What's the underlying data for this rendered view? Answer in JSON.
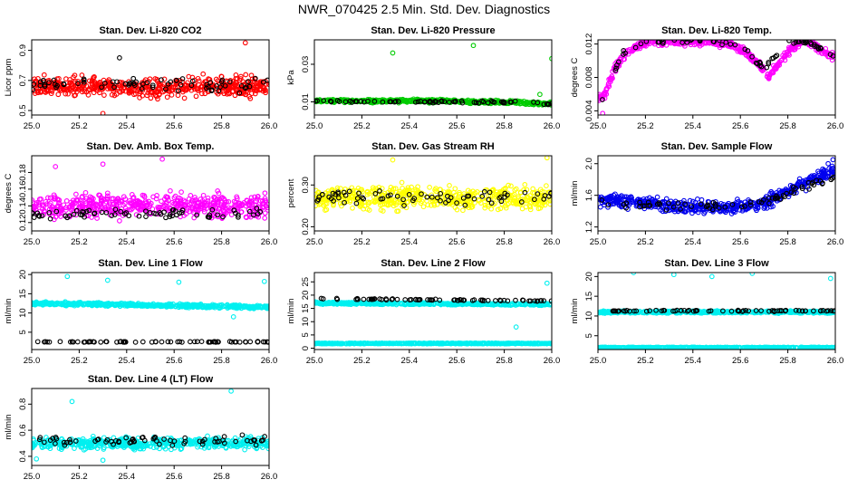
{
  "title": "NWR_070425  2.5 Min. Std. Dev. Diagnostics",
  "chart_data": [
    {
      "type": "scatter",
      "title": "Stan. Dev. Li-820 CO2",
      "ylabel": "Licor ppm",
      "xlim": [
        25.0,
        26.0
      ],
      "xticks": [
        "25.0",
        "25.2",
        "25.4",
        "25.6",
        "25.8",
        "26.0"
      ],
      "xtick_values": [
        25.0,
        25.2,
        25.4,
        25.6,
        25.8,
        26.0
      ],
      "ylim": [
        0.47,
        0.97
      ],
      "yticks": [
        "0.5",
        "0.7",
        "0.9"
      ],
      "ytick_values": [
        0.5,
        0.7,
        0.9
      ],
      "series": [
        {
          "name": "main",
          "color": "#ff0000",
          "baseline": 0.66,
          "spread": 0.09,
          "x": [
            25.05,
            25.2,
            25.35,
            25.5,
            25.65,
            25.8,
            25.95
          ],
          "y": [
            0.66,
            0.65,
            0.66,
            0.65,
            0.66,
            0.66,
            0.66
          ],
          "outliers_x": [
            25.3,
            25.9
          ],
          "outliers_y": [
            0.48,
            0.95
          ]
        },
        {
          "name": "flagged",
          "color": "#000000",
          "baseline": 0.67,
          "spread": 0.07,
          "x": [
            25.0,
            25.5,
            26.0
          ],
          "y": [
            0.67,
            0.67,
            0.67
          ],
          "outliers_x": [
            25.37
          ],
          "outliers_y": [
            0.85
          ]
        }
      ]
    },
    {
      "type": "scatter",
      "title": "Stan. Dev. Li-820 Pressure",
      "ylabel": "kPa",
      "xlim": [
        25.0,
        26.0
      ],
      "xticks": [
        "25.0",
        "25.2",
        "25.4",
        "25.6",
        "25.8",
        "26.0"
      ],
      "xtick_values": [
        25.0,
        25.2,
        25.4,
        25.6,
        25.8,
        26.0
      ],
      "ylim": [
        0.003,
        0.043
      ],
      "yticks": [
        "0.01",
        "0.03"
      ],
      "ytick_values": [
        0.01,
        0.03
      ],
      "series": [
        {
          "name": "main",
          "color": "#00cc00",
          "baseline": 0.0105,
          "spread": 0.0012,
          "x": [
            25.0,
            25.5,
            25.9,
            26.0
          ],
          "y": [
            0.0105,
            0.0105,
            0.0095,
            0.009
          ],
          "outliers_x": [
            25.33,
            25.67,
            26.0,
            25.95
          ],
          "outliers_y": [
            0.036,
            0.04,
            0.033,
            0.014
          ]
        },
        {
          "name": "flagged",
          "color": "#000000",
          "baseline": 0.0103,
          "spread": 0.0008,
          "x": [
            25.0,
            25.9,
            26.0
          ],
          "y": [
            0.0103,
            0.0098,
            0.0088
          ],
          "outliers_x": [],
          "outliers_y": []
        }
      ]
    },
    {
      "type": "scatter",
      "title": "Stan. Dev. Li-820 Temp.",
      "ylabel": "degrees C",
      "xlim": [
        25.0,
        26.0
      ],
      "xticks": [
        "25.0",
        "25.2",
        "25.4",
        "25.6",
        "25.8",
        "26.0"
      ],
      "xtick_values": [
        25.0,
        25.2,
        25.4,
        25.6,
        25.8,
        26.0
      ],
      "ylim": [
        0.0035,
        0.0125
      ],
      "yticks": [
        "0.004",
        "0.008",
        "0.012"
      ],
      "ytick_values": [
        0.004,
        0.008,
        0.012
      ],
      "series": [
        {
          "name": "main",
          "color": "#ff00ff",
          "baseline": 0.0115,
          "spread": 0.0007,
          "x": [
            25.0,
            25.03,
            25.07,
            25.12,
            25.2,
            25.3,
            25.45,
            25.55,
            25.62,
            25.68,
            25.72,
            25.78,
            25.85,
            25.9,
            25.95,
            26.0
          ],
          "y": [
            0.0055,
            0.006,
            0.009,
            0.011,
            0.0123,
            0.0123,
            0.0122,
            0.0121,
            0.011,
            0.0095,
            0.008,
            0.0105,
            0.0123,
            0.0122,
            0.011,
            0.0105
          ],
          "outliers_x": [
            25.02
          ],
          "outliers_y": [
            0.0037
          ]
        },
        {
          "name": "flagged",
          "color": "#000000",
          "baseline": 0.012,
          "spread": 0.0005,
          "x": [
            25.0,
            25.05,
            25.1,
            25.2,
            25.5,
            25.6,
            25.7,
            25.8,
            25.9,
            26.0
          ],
          "y": [
            0.0045,
            0.007,
            0.011,
            0.0123,
            0.0123,
            0.012,
            0.009,
            0.0123,
            0.0122,
            0.0105
          ],
          "outliers_x": [],
          "outliers_y": []
        }
      ]
    },
    {
      "type": "scatter",
      "title": "Stan. Dev. Amb. Box Temp.",
      "ylabel": "degrees C",
      "xlim": [
        25.0,
        26.0
      ],
      "xticks": [
        "25.0",
        "25.2",
        "25.4",
        "25.6",
        "25.8",
        "26.0"
      ],
      "xtick_values": [
        25.0,
        25.2,
        25.4,
        25.6,
        25.8,
        26.0
      ],
      "ylim": [
        0.11,
        0.2
      ],
      "yticks": [
        "0.12",
        "0.14",
        "0.16",
        "0.18"
      ],
      "ytick_values": [
        0.12,
        0.14,
        0.16,
        0.18
      ],
      "series": [
        {
          "name": "main",
          "color": "#ff00ff",
          "baseline": 0.14,
          "spread": 0.02,
          "x": [
            25.0,
            26.0
          ],
          "y": [
            0.14,
            0.14
          ],
          "outliers_x": [
            25.55,
            25.3,
            25.1
          ],
          "outliers_y": [
            0.196,
            0.19,
            0.187
          ]
        },
        {
          "name": "flagged",
          "color": "#000000",
          "baseline": 0.13,
          "spread": 0.008,
          "x": [
            25.0,
            26.0
          ],
          "y": [
            0.13,
            0.13
          ],
          "outliers_x": [],
          "outliers_y": []
        }
      ]
    },
    {
      "type": "scatter",
      "title": "Stan. Dev. Gas Stream RH",
      "ylabel": "percent",
      "xlim": [
        25.0,
        26.0
      ],
      "xticks": [
        "25.0",
        "25.2",
        "25.4",
        "25.6",
        "25.8",
        "26.0"
      ],
      "xtick_values": [
        25.0,
        25.2,
        25.4,
        25.6,
        25.8,
        26.0
      ],
      "ylim": [
        0.19,
        0.37
      ],
      "yticks": [
        "0.20",
        "0.30"
      ],
      "ytick_values": [
        0.2,
        0.3
      ],
      "series": [
        {
          "name": "main",
          "color": "#ffff00",
          "baseline": 0.27,
          "spread": 0.04,
          "x": [
            25.0,
            26.0
          ],
          "y": [
            0.27,
            0.27
          ],
          "outliers_x": [
            25.98,
            25.33
          ],
          "outliers_y": [
            0.365,
            0.36
          ]
        },
        {
          "name": "flagged",
          "color": "#000000",
          "baseline": 0.27,
          "spread": 0.025,
          "x": [
            25.0,
            26.0
          ],
          "y": [
            0.27,
            0.27
          ],
          "outliers_x": [],
          "outliers_y": []
        }
      ]
    },
    {
      "type": "scatter",
      "title": "Stan. Dev. Sample Flow",
      "ylabel": "ml/min",
      "xlim": [
        25.0,
        26.0
      ],
      "xticks": [
        "25.0",
        "25.2",
        "25.4",
        "25.6",
        "25.8",
        "26.0"
      ],
      "xtick_values": [
        25.0,
        25.2,
        25.4,
        25.6,
        25.8,
        26.0
      ],
      "ylim": [
        1.15,
        2.1
      ],
      "yticks": [
        "1.2",
        "1.6",
        "2.0"
      ],
      "ytick_values": [
        1.2,
        1.6,
        2.0
      ],
      "series": [
        {
          "name": "main",
          "color": "#0000ee",
          "baseline": 1.5,
          "spread": 0.12,
          "x": [
            25.0,
            25.2,
            25.4,
            25.6,
            25.7,
            25.8,
            25.9,
            26.0
          ],
          "y": [
            1.55,
            1.5,
            1.45,
            1.45,
            1.5,
            1.65,
            1.8,
            1.9
          ],
          "outliers_x": [
            25.99,
            25.97
          ],
          "outliers_y": [
            2.05,
            2.0
          ]
        },
        {
          "name": "flagged",
          "color": "#000000",
          "baseline": 1.5,
          "spread": 0.08,
          "x": [
            25.0,
            25.4,
            25.7,
            25.9,
            26.0
          ],
          "y": [
            1.5,
            1.45,
            1.5,
            1.75,
            1.85
          ],
          "outliers_x": [],
          "outliers_y": []
        }
      ]
    },
    {
      "type": "scatter",
      "title": "Stan. Dev. Line 1 Flow",
      "ylabel": "ml/min",
      "xlim": [
        25.0,
        26.0
      ],
      "xticks": [
        "25.0",
        "25.2",
        "25.4",
        "25.6",
        "25.8",
        "26.0"
      ],
      "xtick_values": [
        25.0,
        25.2,
        25.4,
        25.6,
        25.8,
        26.0
      ],
      "ylim": [
        0.5,
        20.5
      ],
      "yticks": [
        "5",
        "10",
        "15",
        "20"
      ],
      "ytick_values": [
        5,
        10,
        15,
        20
      ],
      "series": [
        {
          "name": "main",
          "color": "#00f0f0",
          "baseline": 12.0,
          "spread": 0.6,
          "x": [
            25.0,
            26.0
          ],
          "y": [
            12.5,
            11.5
          ],
          "outliers_x": [
            25.15,
            25.32,
            25.62,
            25.98,
            25.85
          ],
          "outliers_y": [
            19.5,
            18.5,
            18.0,
            18.2,
            9.0
          ]
        },
        {
          "name": "flagged",
          "color": "#000000",
          "baseline": 2.5,
          "spread": 0.15,
          "x": [
            25.0,
            26.0
          ],
          "y": [
            2.5,
            2.5
          ],
          "outliers_x": [],
          "outliers_y": []
        }
      ]
    },
    {
      "type": "scatter",
      "title": "Stan. Dev. Line 2 Flow",
      "ylabel": "ml/min",
      "xlim": [
        25.0,
        26.0
      ],
      "xticks": [
        "25.0",
        "25.2",
        "25.4",
        "25.6",
        "25.8",
        "26.0"
      ],
      "xtick_values": [
        25.0,
        25.2,
        25.4,
        25.6,
        25.8,
        26.0
      ],
      "ylim": [
        -0.5,
        28.5
      ],
      "yticks": [
        "0",
        "5",
        "10",
        "15",
        "20",
        "25"
      ],
      "ytick_values": [
        0,
        5,
        10,
        15,
        20,
        25
      ],
      "series": [
        {
          "name": "main",
          "color": "#00f0f0",
          "baseline": 17.0,
          "spread": 0.6,
          "x": [
            25.0,
            26.0
          ],
          "y": [
            17.0,
            16.5
          ],
          "outliers_x": [
            25.98,
            25.85
          ],
          "outliers_y": [
            24.5,
            8.0
          ]
        },
        {
          "name": "low",
          "color": "#00f0f0",
          "baseline": 1.8,
          "spread": 0.2,
          "x": [
            25.0,
            26.0
          ],
          "y": [
            1.8,
            1.8
          ],
          "outliers_x": [],
          "outliers_y": []
        },
        {
          "name": "flagged",
          "color": "#000000",
          "baseline": 18.5,
          "spread": 0.3,
          "x": [
            25.0,
            26.0
          ],
          "y": [
            18.7,
            17.8
          ],
          "outliers_x": [],
          "outliers_y": []
        }
      ]
    },
    {
      "type": "scatter",
      "title": "Stan. Dev. Line 3 Flow",
      "ylabel": "ml/min",
      "xlim": [
        25.0,
        26.0
      ],
      "xticks": [
        "25.0",
        "25.2",
        "25.4",
        "25.6",
        "25.8",
        "26.0"
      ],
      "xtick_values": [
        25.0,
        25.2,
        25.4,
        25.6,
        25.8,
        26.0
      ],
      "ylim": [
        1.5,
        21.0
      ],
      "yticks": [
        "5",
        "10",
        "15",
        "20"
      ],
      "ytick_values": [
        5,
        10,
        15,
        20
      ],
      "series": [
        {
          "name": "main",
          "color": "#00f0f0",
          "baseline": 11.0,
          "spread": 0.4,
          "x": [
            25.0,
            26.0
          ],
          "y": [
            11.0,
            11.0
          ],
          "outliers_x": [
            25.15,
            25.32,
            25.48,
            25.65,
            25.98
          ],
          "outliers_y": [
            21.0,
            20.5,
            20.0,
            20.8,
            19.5
          ]
        },
        {
          "name": "low",
          "color": "#00f0f0",
          "baseline": 2.0,
          "spread": 0.15,
          "x": [
            25.0,
            26.0
          ],
          "y": [
            2.0,
            2.0
          ],
          "outliers_x": [],
          "outliers_y": []
        },
        {
          "name": "flagged",
          "color": "#000000",
          "baseline": 11.3,
          "spread": 0.25,
          "x": [
            25.0,
            26.0
          ],
          "y": [
            11.3,
            11.3
          ],
          "outliers_x": [],
          "outliers_y": []
        }
      ]
    },
    {
      "type": "scatter",
      "title": "Stan. Dev. Line 4 (LT) Flow",
      "ylabel": "ml/min",
      "xlim": [
        25.0,
        26.0
      ],
      "xticks": [
        "25.0",
        "25.2",
        "25.4",
        "25.6",
        "25.8",
        "26.0"
      ],
      "xtick_values": [
        25.0,
        25.2,
        25.4,
        25.6,
        25.8,
        26.0
      ],
      "ylim": [
        0.33,
        0.92
      ],
      "yticks": [
        "0.4",
        "0.6",
        "0.8"
      ],
      "ytick_values": [
        0.4,
        0.6,
        0.8
      ],
      "series": [
        {
          "name": "main",
          "color": "#00f0f0",
          "baseline": 0.5,
          "spread": 0.06,
          "x": [
            25.0,
            26.0
          ],
          "y": [
            0.5,
            0.5
          ],
          "outliers_x": [
            25.84,
            25.17,
            25.02,
            25.3
          ],
          "outliers_y": [
            0.9,
            0.82,
            0.38,
            0.37
          ]
        },
        {
          "name": "flagged",
          "color": "#000000",
          "baseline": 0.52,
          "spread": 0.05,
          "x": [
            25.0,
            26.0
          ],
          "y": [
            0.52,
            0.52
          ],
          "outliers_x": [],
          "outliers_y": []
        }
      ]
    }
  ]
}
